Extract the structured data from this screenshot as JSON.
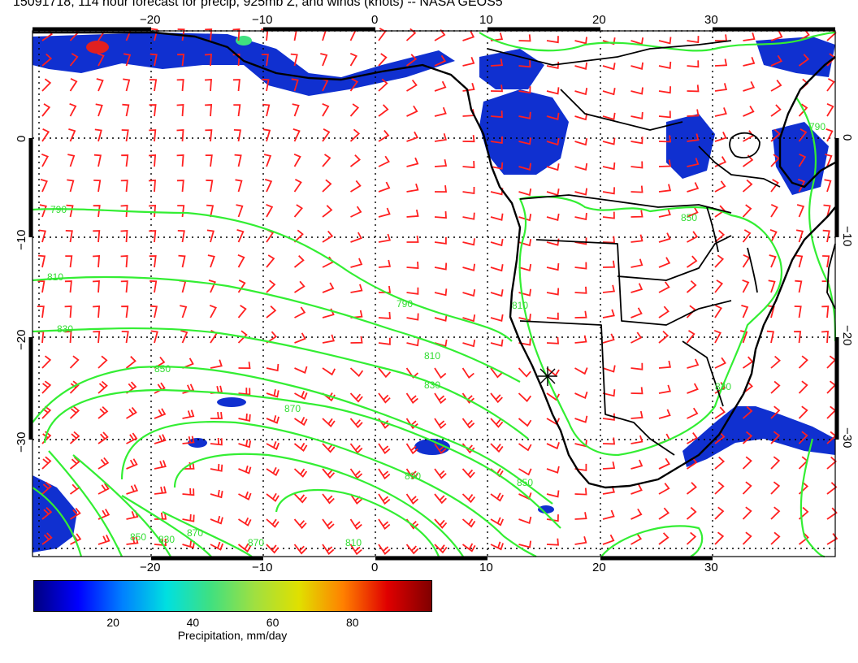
{
  "title": "15091718, 114 hour forecast for precip, 925mb Z, and winds (knots) -- NASA GEOS5",
  "map": {
    "lon_range": [
      -31,
      41
    ],
    "lat_range": [
      -40,
      10
    ],
    "lon_ticks": [
      "−20",
      "−10",
      "0",
      "10",
      "20",
      "30"
    ],
    "lat_ticks": [
      "0",
      "−10",
      "−20",
      "−30"
    ],
    "contour_color": "#33ee33",
    "barb_color": "#ff2020",
    "coast_color": "#000000",
    "contour_labels": [
      "790",
      "810",
      "830",
      "850",
      "870",
      "810",
      "830",
      "850",
      "870",
      "890",
      "810",
      "850",
      "830",
      "870",
      "810",
      "790",
      "850",
      "790",
      "830"
    ]
  },
  "colorbar": {
    "ticks": [
      "20",
      "40",
      "60",
      "80"
    ],
    "tick_values": [
      20,
      40,
      60,
      80
    ],
    "range": [
      0,
      100
    ],
    "label": "Precipitation, mm/day",
    "colors": [
      "#000080",
      "#0000ff",
      "#0080ff",
      "#00e0e0",
      "#40e080",
      "#a0e040",
      "#e0e000",
      "#ff8000",
      "#e00000",
      "#800000"
    ]
  }
}
